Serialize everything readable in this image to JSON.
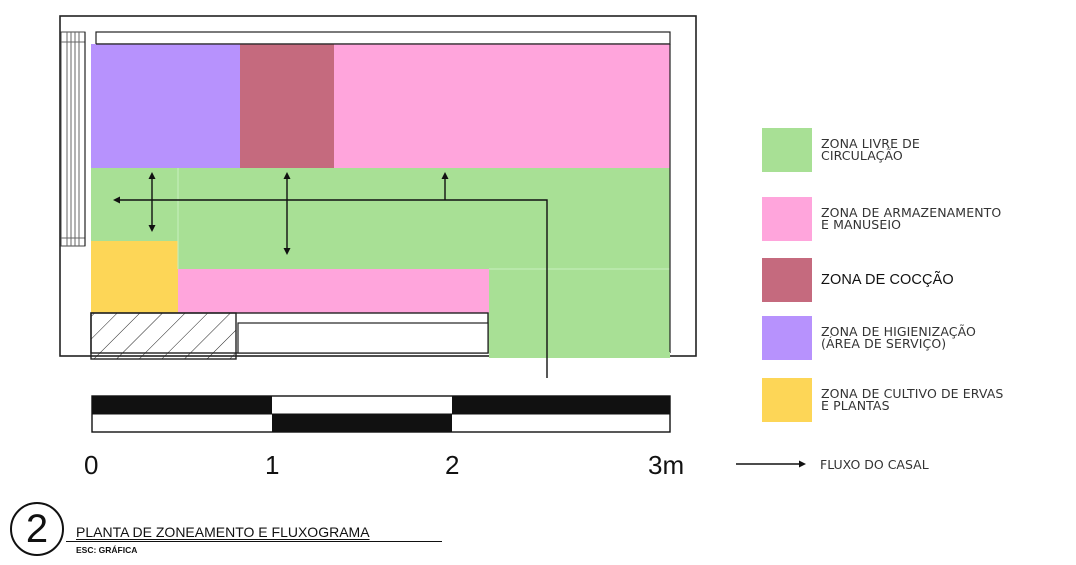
{
  "legend": {
    "items": [
      {
        "label": "ZONA  LIVRE DE\nCIRCULAÇÃO",
        "color": "#a8e095"
      },
      {
        "label": "ZONA DE  ARMAZENAMENTO\nE MANUSEIO",
        "color": "#ffa5dc"
      },
      {
        "label": "ZONA DE COCÇÃO",
        "color": "#c56a7e"
      },
      {
        "label": "ZONA DE  HIGIENIZAÇÃO\n(ÁREA DE SERVIÇO)",
        "color": "#b792fd"
      },
      {
        "label": "ZONA DE CULTIVO DE ERVAS\nE PLANTAS",
        "color": "#fdd657"
      }
    ],
    "flow_label": "FLUXO DO CASAL"
  },
  "scale": {
    "labels": [
      "0",
      "1",
      "2",
      "3m"
    ]
  },
  "title": {
    "number": "2",
    "main": "PLANTA DE ZONEAMENTO E FLUXOGRAMA",
    "sub": "ESC: GRÁFICA"
  }
}
